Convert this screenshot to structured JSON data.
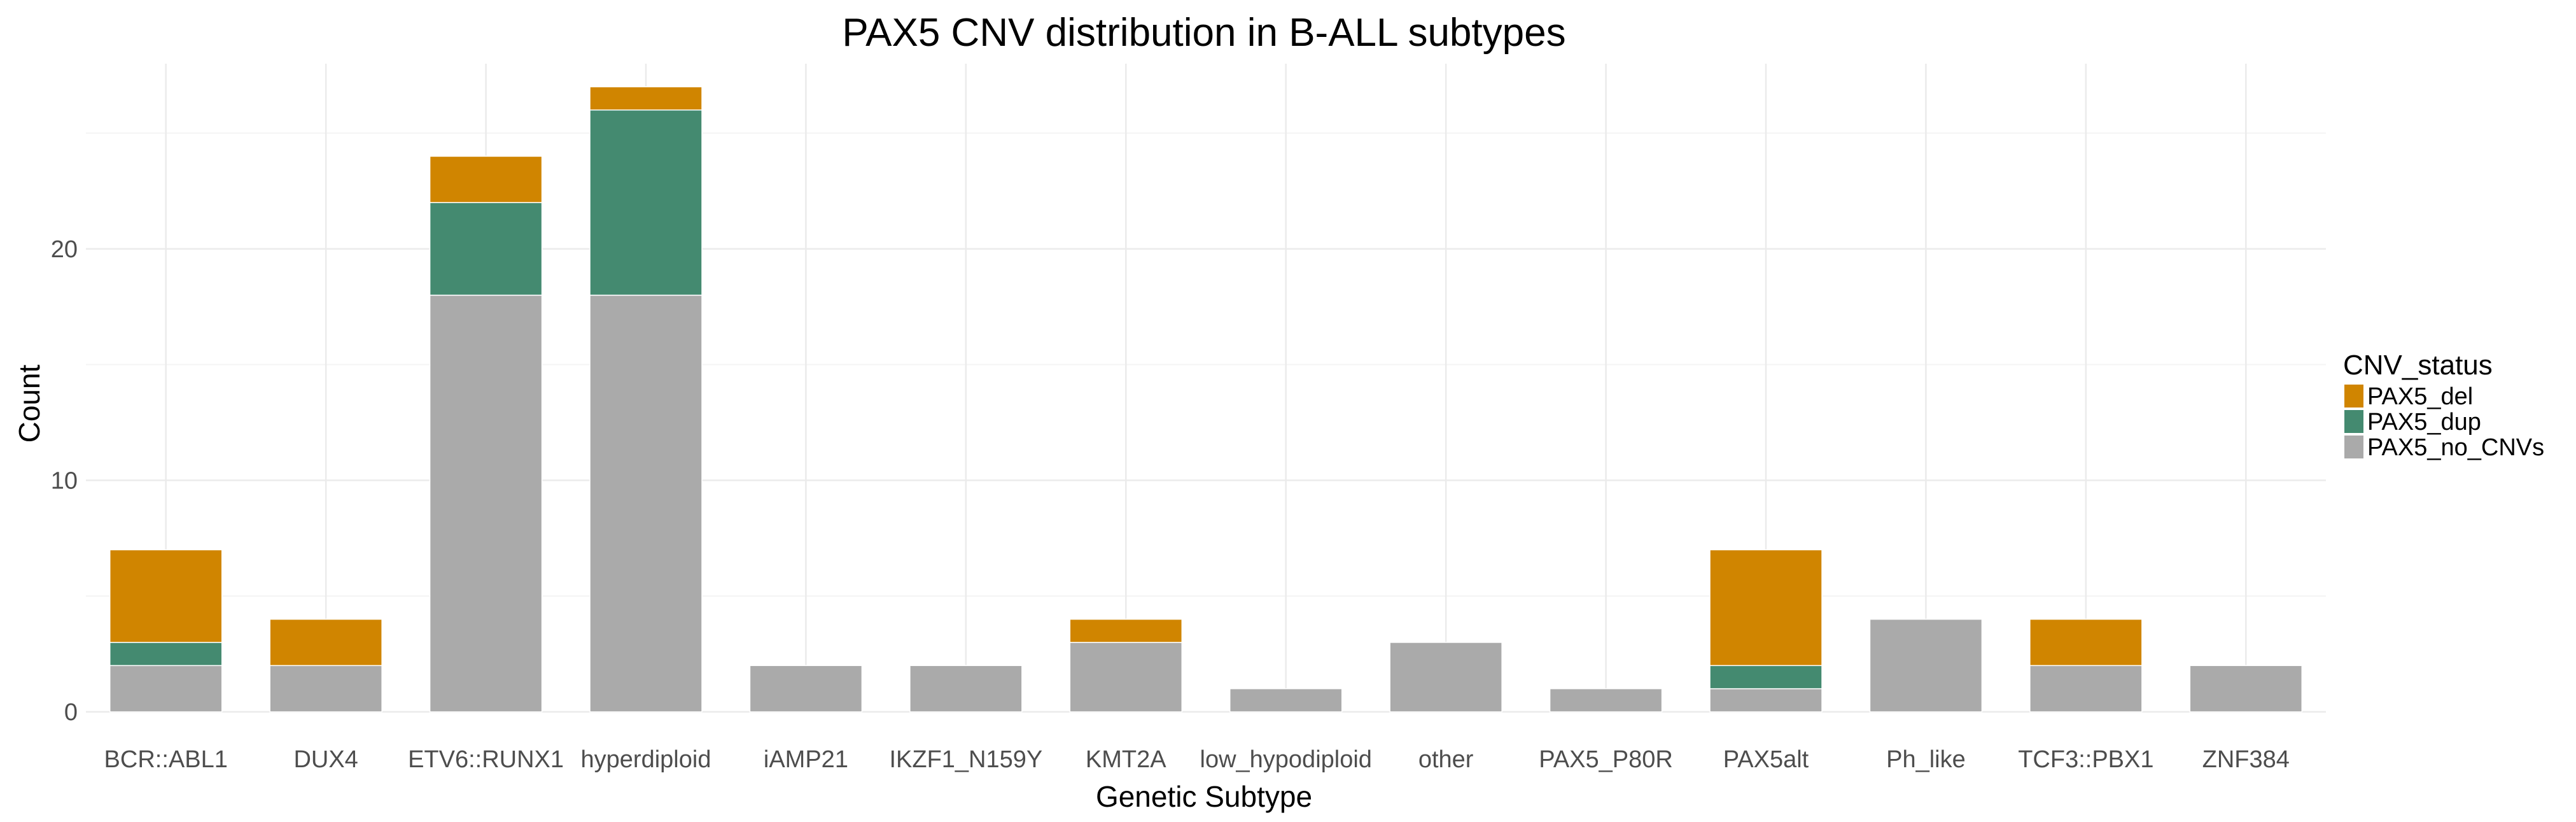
{
  "chart_data": {
    "type": "bar",
    "stacked": true,
    "title": "PAX5 CNV distribution in B-ALL subtypes",
    "xlabel": "Genetic Subtype",
    "ylabel": "Count",
    "ylim": [
      0,
      28
    ],
    "yticks": [
      0,
      10,
      20
    ],
    "grid": true,
    "legend": {
      "title": "CNV_status",
      "placement": "right"
    },
    "categories": [
      "BCR::ABL1",
      "DUX4",
      "ETV6::RUNX1",
      "hyperdiploid",
      "iAMP21",
      "IKZF1_N159Y",
      "KMT2A",
      "low_hypodiploid",
      "other",
      "PAX5_P80R",
      "PAX5alt",
      "Ph_like",
      "TCF3::PBX1",
      "ZNF384"
    ],
    "series": [
      {
        "name": "PAX5_no_CNVs",
        "color": "#aaaaaa",
        "values": [
          2,
          2,
          18,
          18,
          2,
          2,
          3,
          1,
          3,
          1,
          1,
          4,
          2,
          2
        ]
      },
      {
        "name": "PAX5_dup",
        "color": "#448a70",
        "values": [
          1,
          0,
          4,
          8,
          0,
          0,
          0,
          0,
          0,
          0,
          1,
          0,
          0,
          0
        ]
      },
      {
        "name": "PAX5_del",
        "color": "#d08500",
        "values": [
          4,
          2,
          2,
          1,
          0,
          0,
          1,
          0,
          0,
          0,
          5,
          0,
          2,
          0
        ]
      }
    ],
    "legend_order": [
      "PAX5_del",
      "PAX5_dup",
      "PAX5_no_CNVs"
    ]
  }
}
